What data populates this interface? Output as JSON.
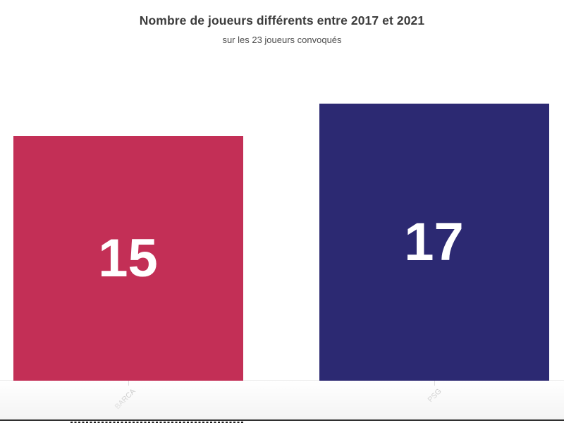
{
  "chart_data": {
    "type": "bar",
    "title": "Nombre de joueurs différents entre 2017 et 2021",
    "subtitle": "sur les 23 joueurs convoqués",
    "categories": [
      "BARCA",
      "PSG"
    ],
    "values": [
      15,
      17
    ],
    "series": [
      {
        "name": "Nombre de joueurs différents",
        "values": [
          15,
          17
        ]
      }
    ],
    "bar_colors": [
      "#c32f56",
      "#2c2972"
    ],
    "value_label_color": "#ffffff",
    "tick_label_color": "#b9b9b9",
    "tick_label_rotation_deg": 45,
    "xlabel": "",
    "ylabel": "",
    "ylim": [
      0,
      20
    ],
    "grid": false,
    "legend": false,
    "value_labels_shown": true
  }
}
